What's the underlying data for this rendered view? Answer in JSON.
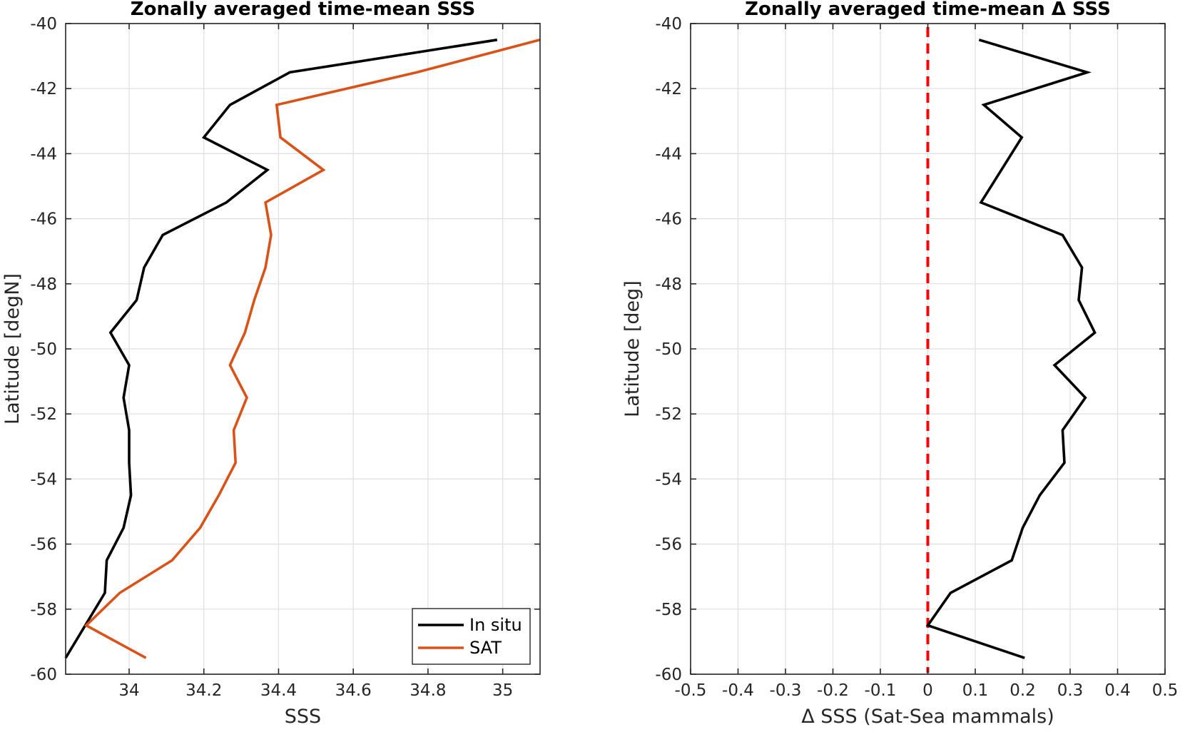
{
  "charts": [
    {
      "type": "line",
      "title": "Zonally averaged time-mean SSS",
      "xlabel": "SSS",
      "ylabel": "Latitude [degN]",
      "xlim": [
        33.83,
        35.1
      ],
      "ylim": [
        -60,
        -40
      ],
      "xticks": [
        34,
        34.2,
        34.4,
        34.6,
        34.8,
        35
      ],
      "xtick_labels": [
        "34",
        "34.2",
        "34.4",
        "34.6",
        "34.8",
        "35"
      ],
      "yticks": [
        -60,
        -58,
        -56,
        -54,
        -52,
        -50,
        -48,
        -46,
        -44,
        -42,
        -40
      ],
      "ytick_labels": [
        "-60",
        "-58",
        "-56",
        "-54",
        "-52",
        "-50",
        "-48",
        "-46",
        "-44",
        "-42",
        "-40"
      ],
      "grid": true,
      "legend_position": "bottom-right",
      "series": [
        {
          "name": "In situ",
          "color": "#000000",
          "x": [
            34.985,
            34.43,
            34.27,
            34.2,
            34.37,
            34.26,
            34.09,
            34.04,
            34.02,
            33.95,
            34.0,
            33.985,
            34.0,
            34.0,
            34.005,
            33.985,
            33.94,
            33.935,
            33.83
          ],
          "y": [
            -40.5,
            -41.5,
            -42.5,
            -43.5,
            -44.5,
            -45.5,
            -46.5,
            -47.5,
            -48.5,
            -49.5,
            -50.5,
            -51.5,
            -52.5,
            -53.5,
            -54.5,
            -55.5,
            -56.5,
            -57.5,
            -59.5
          ]
        },
        {
          "name": "SAT",
          "color": "#D95319",
          "x": [
            35.1,
            34.77,
            34.395,
            34.405,
            34.52,
            34.365,
            34.38,
            34.365,
            34.335,
            34.31,
            34.27,
            34.315,
            34.28,
            34.285,
            34.24,
            34.19,
            34.115,
            33.975,
            33.885,
            34.045
          ],
          "y": [
            -40.5,
            -41.5,
            -42.5,
            -43.5,
            -44.5,
            -45.5,
            -46.5,
            -47.5,
            -48.5,
            -49.5,
            -50.5,
            -51.5,
            -52.5,
            -53.5,
            -54.5,
            -55.5,
            -56.5,
            -57.5,
            -58.5,
            -59.5
          ]
        }
      ]
    },
    {
      "type": "line",
      "title": "Zonally averaged time-mean Δ SSS",
      "xlabel": "Δ SSS (Sat-Sea mammals)",
      "ylabel": "Latitude [deg]",
      "xlim": [
        -0.5,
        0.5
      ],
      "ylim": [
        -60,
        -40
      ],
      "xticks": [
        -0.5,
        -0.4,
        -0.3,
        -0.2,
        -0.1,
        0,
        0.1,
        0.2,
        0.3,
        0.4,
        0.5
      ],
      "xtick_labels": [
        "-0.5",
        "-0.4",
        "-0.3",
        "-0.2",
        "-0.1",
        "0",
        "0.1",
        "0.2",
        "0.3",
        "0.4",
        "0.5"
      ],
      "yticks": [
        -60,
        -58,
        -56,
        -54,
        -52,
        -50,
        -48,
        -46,
        -44,
        -42,
        -40
      ],
      "ytick_labels": [
        "-60",
        "-58",
        "-56",
        "-54",
        "-52",
        "-50",
        "-48",
        "-46",
        "-44",
        "-42",
        "-40"
      ],
      "grid": true,
      "reference_line": {
        "x": 0,
        "color": "#FF0000",
        "style": "dashed"
      },
      "series": [
        {
          "color": "#000000",
          "x": [
            0.108,
            0.336,
            0.118,
            0.198,
            0.112,
            0.284,
            0.325,
            0.318,
            0.352,
            0.267,
            0.332,
            0.284,
            0.288,
            0.236,
            0.2,
            0.177,
            0.048,
            0.0,
            0.204
          ],
          "y": [
            -40.5,
            -41.5,
            -42.5,
            -43.5,
            -45.5,
            -46.5,
            -47.5,
            -48.5,
            -49.5,
            -50.5,
            -51.5,
            -52.5,
            -53.5,
            -54.5,
            -55.5,
            -56.5,
            -57.5,
            -58.5,
            -59.5
          ]
        }
      ]
    }
  ]
}
